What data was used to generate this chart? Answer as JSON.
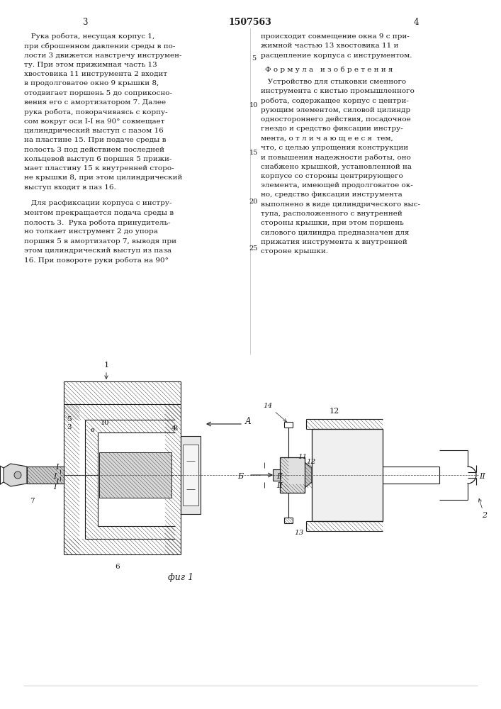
{
  "page_color": "#ffffff",
  "text_color": "#1a1a1a",
  "page_num_left": "3",
  "patent_number": "1507563",
  "page_num_right": "4",
  "left_col_lines": [
    "Рука робота, несущая корпус 1,",
    "при сброшенном давлении среды в по-",
    "лости 3 движется навстречу инструмен-",
    "ту. При этом прижимная часть 13",
    "хвостовика 11 инструмента 2 входит",
    "в продолговатое окно 9 крышки 8,",
    "отодвигает поршень 5 до соприкосно-",
    "вения его с амортизатором 7. Далее",
    "рука робота, поворачиваясь с корпу-",
    "сом вокруг оси I-I на 90° совмещает",
    "цилиндрический выступ с пазом 16",
    "на пластине 15. При подаче среды в",
    "полость 3 под действием последней",
    "кольцевой выступ 6 поршня 5 прижи-",
    "мает пластину 15 к внутренней сторо-",
    "не крышки 8, при этом цилиндрический",
    "выступ входит в паз 16."
  ],
  "left_col_lines2": [
    "   Для расфиксации корпуса с инстру-",
    "ментом прекращается подача среды в",
    "полость 3.  Рука робота принудитель-",
    "но толкает инструмент 2 до упора",
    "поршня 5 в амортизатор 7, выводя при",
    "этом цилиндрический выступ из паза",
    "16. При повороте руки робота на 90°"
  ],
  "right_col_p1": [
    "происходит совмещение окна 9 с при-",
    "жимной частью 13 хвостовика 11 и",
    "расцепление корпуса с инструментом."
  ],
  "formula_header": "Ф о р м у л а   и з о б р е т е н и я",
  "formula_lines": [
    "   Устройство для стыковки сменного",
    "инструмента с кистью промышленного",
    "робота, содержащее корпус с центри-",
    "рующим элементом, силовой цилиндр",
    "одностороннего действия, посадочное",
    "гнездо и средство фиксации инстру-",
    "мента, о т л и ч а ю щ е е с я  тем,",
    "что, с целью упрощения конструкции",
    "и повышения надежности работы, оно",
    "снабжено крышкой, установленной на",
    "корпусе со стороны центрирующего",
    "элемента, имеющей продолговатое ок-",
    "но, средство фиксации инструмента",
    "выполнено в виде цилиндрического выс-",
    "тупа, расположенного с внутренней",
    "стороны крышки, при этом поршень",
    "силового цилиндра предназначен для",
    "прижатия инструмента к внутренней",
    "стороне крышки."
  ],
  "fig_label": "фиг 1"
}
